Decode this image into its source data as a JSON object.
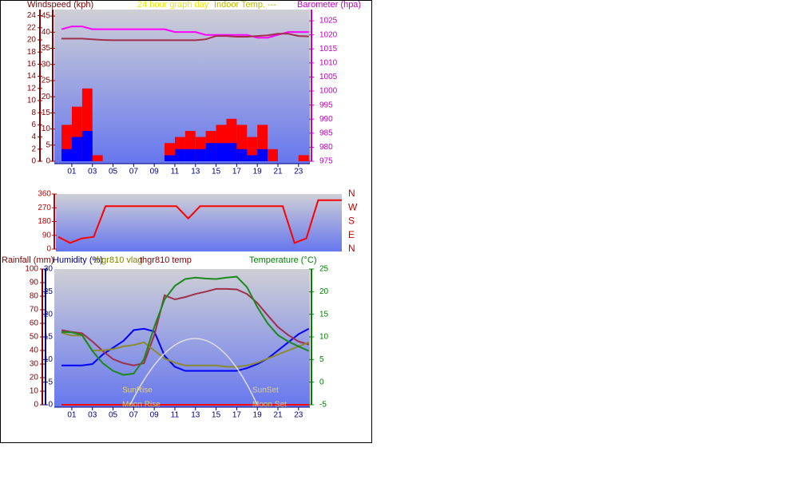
{
  "chart_data": [
    {
      "type": "bar",
      "title": "24 hour graph day",
      "subtitle": "Indoor Temp. ---",
      "ylabel": "Windspeed (kph)",
      "y2label": "Barometer (hpa)",
      "x": [
        0,
        1,
        2,
        3,
        4,
        5,
        6,
        7,
        8,
        9,
        10,
        11,
        12,
        13,
        14,
        15,
        16,
        17,
        18,
        19,
        20,
        21,
        22,
        23,
        24
      ],
      "xlim": [
        -0.7,
        24.1
      ],
      "xticks": [
        {
          "value": 1,
          "label": "01"
        },
        {
          "value": 3,
          "label": "03"
        },
        {
          "value": 5,
          "label": "05"
        },
        {
          "value": 7,
          "label": "07"
        },
        {
          "value": 9,
          "label": "09"
        },
        {
          "value": 11,
          "label": "11"
        },
        {
          "value": 13,
          "label": "13"
        },
        {
          "value": 15,
          "label": "15"
        },
        {
          "value": 17,
          "label": "17"
        },
        {
          "value": 19,
          "label": "19"
        },
        {
          "value": 21,
          "label": "21"
        },
        {
          "value": 23,
          "label": "23"
        }
      ],
      "ylim": [
        0,
        25
      ],
      "yticks": [
        0,
        2,
        4,
        6,
        8,
        10,
        12,
        14,
        16,
        18,
        20,
        22,
        24
      ],
      "y3lim": [
        0,
        47
      ],
      "y3ticks": [
        0,
        5,
        10,
        15,
        20,
        25,
        30,
        35,
        40,
        45
      ],
      "y2lim": [
        975,
        1029
      ],
      "y2ticks": [
        975,
        980,
        985,
        990,
        995,
        1000,
        1005,
        1010,
        1015,
        1020,
        1025
      ],
      "series": [
        {
          "kind": "bar",
          "color": "#ff0000",
          "values": [
            6,
            9,
            12,
            1,
            0,
            0,
            0,
            0,
            0,
            0,
            3,
            4,
            5,
            4,
            5,
            6,
            7,
            6,
            4,
            6,
            2,
            0,
            0,
            1,
            0
          ]
        },
        {
          "kind": "bar",
          "color": "#0000ff",
          "values": [
            2,
            4,
            5,
            0,
            0,
            0,
            0,
            0,
            0,
            0,
            1,
            2,
            2,
            2,
            3,
            3,
            3,
            2,
            1,
            2,
            0,
            0,
            0,
            0,
            0
          ]
        },
        {
          "kind": "line",
          "axis": "y2",
          "color": "#ff00ff",
          "values": [
            1022,
            1023,
            1023,
            1022,
            1022,
            1022,
            1022,
            1022,
            1022,
            1022,
            1022,
            1021,
            1021,
            1021,
            1020,
            1020,
            1020,
            1020,
            1020,
            1019,
            1019,
            1020,
            1021,
            1021,
            1021
          ]
        },
        {
          "kind": "line",
          "axis": "y3",
          "color": "#a0304a",
          "values": [
            38,
            38,
            38,
            37.8,
            37.6,
            37.5,
            37.5,
            37.5,
            37.5,
            37.5,
            37.5,
            37.5,
            37.5,
            37.5,
            37.8,
            38.8,
            38.8,
            38.6,
            38.6,
            38.8,
            39,
            39.5,
            39.5,
            38.8,
            38.7
          ]
        }
      ]
    },
    {
      "type": "line",
      "x": [
        0,
        1,
        2,
        3,
        4,
        5,
        6,
        7,
        8,
        9,
        10,
        11,
        12,
        13,
        14,
        15,
        16,
        17,
        18,
        19,
        20,
        21,
        22,
        23,
        24
      ],
      "xlim": [
        -0.2,
        24
      ],
      "ylim": [
        0,
        360
      ],
      "yticks": [
        0,
        90,
        180,
        270,
        360
      ],
      "y2lim": [
        0,
        360
      ],
      "y2ticks": [
        {
          "value": 0,
          "label": "N"
        },
        {
          "value": 90,
          "label": "E"
        },
        {
          "value": 180,
          "label": "S"
        },
        {
          "value": 270,
          "label": "W"
        },
        {
          "value": 360,
          "label": "N"
        }
      ],
      "series": [
        {
          "kind": "line",
          "color": "#ff0000",
          "values": [
            80,
            40,
            70,
            80,
            280,
            280,
            280,
            280,
            280,
            280,
            280,
            200,
            280,
            280,
            280,
            280,
            280,
            280,
            280,
            280,
            40,
            70,
            320,
            320,
            320
          ]
        }
      ]
    },
    {
      "type": "line",
      "ylabel": "Rainfall (mm)",
      "y3label": "Humidity (%)",
      "y2label": "Temperature (°C)",
      "annotations": [
        "SunRise",
        "SunSet",
        "Moon Rise",
        "Moon Set"
      ],
      "x": [
        0,
        1,
        2,
        3,
        4,
        5,
        6,
        7,
        8,
        9,
        10,
        11,
        12,
        13,
        14,
        15,
        16,
        17,
        18,
        19,
        20,
        21,
        22,
        23,
        24
      ],
      "xlim": [
        -0.7,
        24.1
      ],
      "xticks": [
        {
          "value": 1,
          "label": "01"
        },
        {
          "value": 3,
          "label": "03"
        },
        {
          "value": 5,
          "label": "05"
        },
        {
          "value": 7,
          "label": "07"
        },
        {
          "value": 9,
          "label": "09"
        },
        {
          "value": 11,
          "label": "11"
        },
        {
          "value": 13,
          "label": "13"
        },
        {
          "value": 15,
          "label": "15"
        },
        {
          "value": 17,
          "label": "17"
        },
        {
          "value": 19,
          "label": "19"
        },
        {
          "value": 21,
          "label": "21"
        },
        {
          "value": 23,
          "label": "23"
        }
      ],
      "ylim": [
        0,
        100
      ],
      "yticks": [
        0,
        10,
        20,
        30,
        40,
        50,
        60,
        70,
        80,
        90,
        100
      ],
      "y3lim": [
        0,
        30
      ],
      "y3ticks": [
        0,
        5,
        10,
        15,
        20,
        25,
        30
      ],
      "y2lim": [
        -5,
        25
      ],
      "y2ticks": [
        -5,
        0,
        5,
        10,
        15,
        20,
        25
      ],
      "series": [
        {
          "kind": "line",
          "color": "#ff0000",
          "values": [
            0,
            0,
            0,
            0,
            0,
            0,
            0,
            0,
            0,
            0,
            0,
            0,
            0,
            0,
            0,
            0,
            0,
            0,
            0,
            0,
            0,
            0,
            0,
            0,
            0
          ]
        },
        {
          "kind": "line",
          "axis": "y3",
          "color": "#0000ff",
          "values": [
            8.7,
            8.7,
            8.7,
            9,
            11.1,
            12.6,
            14.1,
            16.5,
            16.8,
            16.2,
            10.8,
            8.4,
            7.5,
            7.5,
            7.5,
            7.5,
            7.5,
            7.5,
            8.1,
            9,
            10.2,
            12,
            13.8,
            15.6,
            16.8
          ]
        },
        {
          "name": "thgr810 temp",
          "kind": "line",
          "axis": "y2",
          "color": "#a0304a",
          "values": [
            11.5,
            11.1,
            10.8,
            9,
            6.9,
            5.1,
            4.2,
            3.7,
            4.2,
            10.4,
            19.2,
            18.3,
            18.8,
            19.5,
            20,
            20.6,
            20.6,
            20.5,
            19.5,
            17.5,
            14.8,
            12.2,
            10.4,
            9,
            8.3
          ]
        },
        {
          "name": "thgr810 vlag",
          "kind": "line",
          "axis": "y3",
          "color": "#8a8a30",
          "values": [
            15.9,
            15.3,
            15.3,
            12,
            12,
            12.3,
            12.9,
            13.2,
            13.8,
            12,
            10.2,
            9.3,
            8.7,
            8.7,
            8.7,
            8.7,
            8.4,
            8.4,
            8.7,
            9.3,
            10.2,
            11.1,
            12,
            12.9,
            13.8
          ]
        },
        {
          "kind": "line",
          "axis": "y2",
          "color": "#1a8a1a",
          "values": [
            11.1,
            11,
            10.4,
            6.9,
            4.2,
            2.5,
            1.6,
            1.9,
            5.1,
            12.2,
            18.3,
            21.3,
            22.8,
            23.1,
            22.9,
            22.8,
            23.1,
            23.3,
            21,
            16.6,
            13,
            10.4,
            9,
            7.9,
            6.9
          ]
        }
      ]
    }
  ]
}
